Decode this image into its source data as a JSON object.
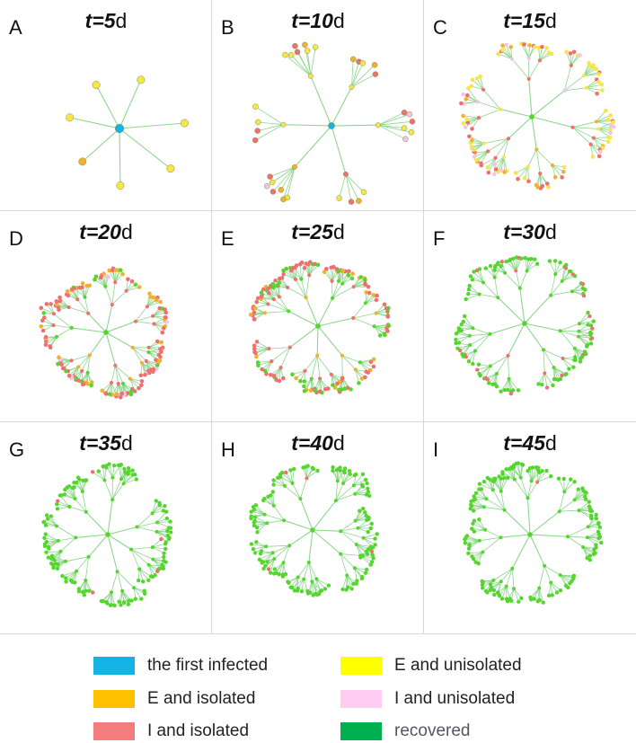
{
  "panels": [
    {
      "letter": "A",
      "t_prefix": "t=",
      "t_value": "5",
      "t_unit": "d",
      "day": 5
    },
    {
      "letter": "B",
      "t_prefix": "t=",
      "t_value": "10",
      "t_unit": "d",
      "day": 10
    },
    {
      "letter": "C",
      "t_prefix": "t=",
      "t_value": "15",
      "t_unit": "d",
      "day": 15
    },
    {
      "letter": "D",
      "t_prefix": "t=",
      "t_value": "20",
      "t_unit": "d",
      "day": 20
    },
    {
      "letter": "E",
      "t_prefix": "t=",
      "t_value": "25",
      "t_unit": "d",
      "day": 25
    },
    {
      "letter": "F",
      "t_prefix": "t=",
      "t_value": "30",
      "t_unit": "d",
      "day": 30
    },
    {
      "letter": "G",
      "t_prefix": "t=",
      "t_value": "35",
      "t_unit": "d",
      "day": 35
    },
    {
      "letter": "H",
      "t_prefix": "t=",
      "t_value": "40",
      "t_unit": "d",
      "day": 40
    },
    {
      "letter": "I",
      "t_prefix": "t=",
      "t_value": "45",
      "t_unit": "d",
      "day": 45
    }
  ],
  "legend": [
    {
      "label": "the first infected",
      "color": "#13b3e6"
    },
    {
      "label": "E and unisolated",
      "color": "#ffff00"
    },
    {
      "label": "E and isolated",
      "color": "#ffc000"
    },
    {
      "label": "I and unisolated",
      "color": "#ffccf2"
    },
    {
      "label": "I and isolated",
      "color": "#f47c7c"
    },
    {
      "label": "recovered",
      "color": "#00b050"
    }
  ],
  "colors": {
    "edge": "#8ed68e",
    "node_first": "#13b3e6",
    "node_E_unisolated": "#f5e64a",
    "node_E_isolated": "#f0b030",
    "node_I_unisolated": "#f2c4ea",
    "node_I_isolated": "#ee7070",
    "node_recovered": "#55d62e",
    "node_stroke": "#8a8a40"
  }
}
